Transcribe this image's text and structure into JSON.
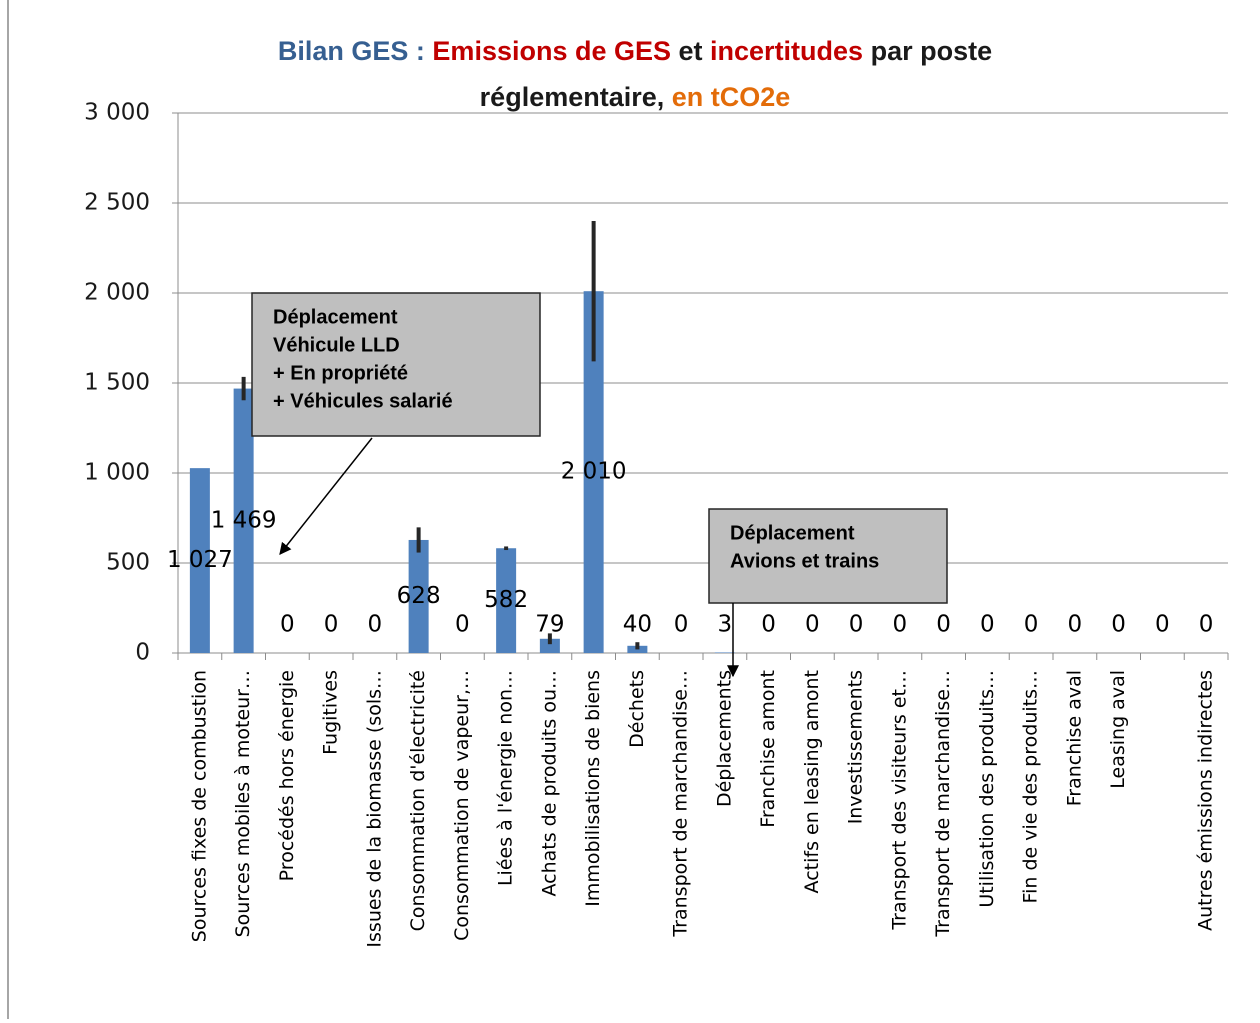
{
  "chart_data": {
    "type": "bar",
    "title_lines": [
      [
        {
          "text": "Bilan GES : ",
          "color": "#365f91"
        },
        {
          "text": "Emissions de GES",
          "color": "#c00000"
        },
        {
          "text": " et ",
          "color": "#1a1a1a"
        },
        {
          "text": "incertitudes",
          "color": "#c00000"
        },
        {
          "text": " par poste",
          "color": "#1a1a1a"
        }
      ],
      [
        {
          "text": "réglementaire, ",
          "color": "#1a1a1a"
        },
        {
          "text": "en tCO2e",
          "color": "#e36c09"
        }
      ]
    ],
    "categories": [
      "Sources fixes de combustion",
      "Sources mobiles à moteur…",
      "Procédés hors énergie",
      "Fugitives",
      "Issues de la biomasse (sols…",
      "Consommation d'électricité",
      "Consommation de vapeur,…",
      "Liées à l'énergie non…",
      "Achats de produits ou…",
      "Immobilisations de biens",
      "Déchets",
      "Transport de marchandise…",
      "Déplacements",
      "Franchise amont",
      "Actifs en leasing amont",
      "Investissements",
      "Transport des visiteurs et…",
      "Transport de marchandise…",
      "Utilisation des produits…",
      "Fin de vie des produits…",
      "Franchise aval",
      "Leasing aval",
      null,
      "Autres émissions indirectes"
    ],
    "values": [
      1027,
      1469,
      0,
      0,
      0,
      628,
      0,
      582,
      79,
      2010,
      40,
      0,
      3,
      0,
      0,
      0,
      0,
      0,
      0,
      0,
      0,
      0,
      0,
      0
    ],
    "value_labels": [
      "1 027",
      "1 469",
      "0",
      "0",
      "0",
      "628",
      "0",
      "582",
      "79",
      "2 010",
      "40",
      "0",
      "3",
      "0",
      "0",
      "0",
      "0",
      "0",
      "0",
      "0",
      "0",
      "0",
      "0",
      "0"
    ],
    "errors": [
      0,
      65,
      0,
      0,
      0,
      70,
      0,
      10,
      30,
      390,
      20,
      0,
      0,
      0,
      0,
      0,
      0,
      0,
      0,
      0,
      0,
      0,
      0,
      0
    ],
    "color": "#4f81bd",
    "error_color": "#262626",
    "ylim": [
      0,
      3000
    ],
    "yticks": [
      0,
      500,
      {
        "value": 1000,
        "label": "1 000"
      },
      {
        "value": 1500,
        "label": "1 500"
      },
      {
        "value": 2000,
        "label": "2 000"
      },
      {
        "value": 2500,
        "label": "2 500"
      },
      {
        "value": 3000,
        "label": "3 000"
      }
    ],
    "grid": true,
    "annotations": [
      {
        "lines": [
          "Déplacement",
          "Véhicule LLD",
          "+ En propriété",
          "+ Véhicules salarié"
        ]
      },
      {
        "lines": [
          "Déplacement",
          "Avions et trains"
        ]
      }
    ]
  }
}
